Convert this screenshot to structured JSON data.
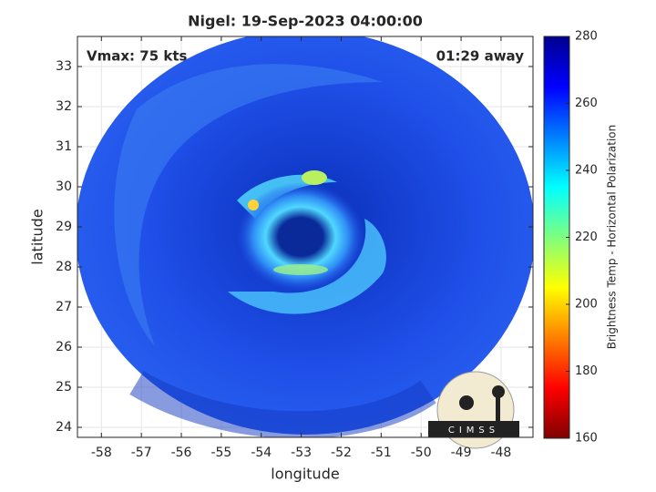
{
  "chart_data": {
    "type": "image",
    "title": "Nigel: 19-Sep-2023 04:00:00",
    "annotations": [
      "Vmax: 75 kts",
      "01:29 away"
    ],
    "x_label": "longitude",
    "y_label": "latitude",
    "xlim": [
      -58.6,
      -47.2
    ],
    "xticks": [
      -58,
      -57,
      -56,
      -55,
      -54,
      -53,
      -52,
      -51,
      -50,
      -49,
      -48
    ],
    "ylim": [
      23.75,
      33.75
    ],
    "yticks": [
      24,
      25,
      26,
      27,
      28,
      29,
      30,
      31,
      32,
      33
    ],
    "grid": true,
    "colorbar": {
      "label": "Brightness Temp - Horizontal Polarization",
      "lim": [
        160,
        280
      ],
      "ticks": [
        160,
        180,
        200,
        220,
        240,
        260,
        280
      ],
      "colormap": [
        "#7f0000",
        "#ff0000",
        "#ff7f00",
        "#ffff00",
        "#7fff7f",
        "#00ffff",
        "#007fff",
        "#0000ff",
        "#00008f"
      ]
    },
    "logo": "CIMSS"
  }
}
